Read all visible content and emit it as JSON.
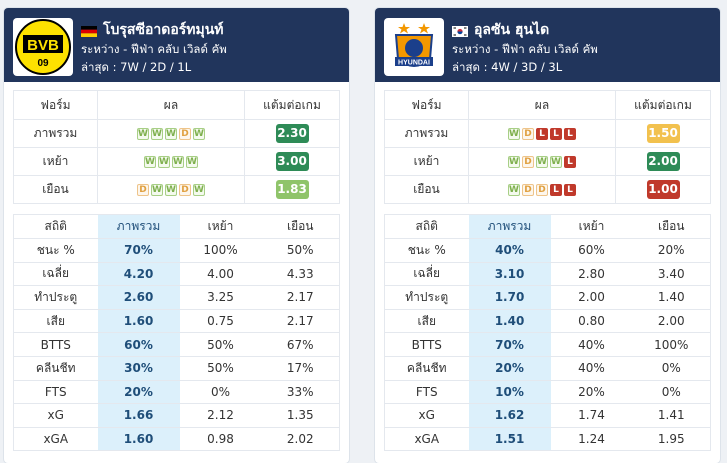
{
  "colors": {
    "header": "#21355c",
    "highlight": "#dcf0fb",
    "ppg_dark_green": "#2e8b57",
    "ppg_light_green": "#8fc46a",
    "ppg_amber": "#f2c14e",
    "ppg_red": "#c0392b"
  },
  "teams": [
    {
      "name": "โบรุสซีอาดอร์ทมุนท์",
      "flag": "germany-flag-icon",
      "logo_text": "BVB",
      "logo_sub": "09",
      "competition": "ระหว่าง - ฟีฟ่า คลับ เวิลด์ คัพ",
      "last": "ล่าสุด : 7W / 2D / 1L",
      "form_headers": {
        "form": "ฟอร์ม",
        "result": "ผล",
        "ppg": "แต้มต่อเกม"
      },
      "form_rows": [
        {
          "label": "ภาพรวม",
          "results": [
            "W",
            "W",
            "W",
            "D",
            "W"
          ],
          "ppg": "2.30",
          "ppg_color": "#2e8b57"
        },
        {
          "label": "เหย้า",
          "results": [
            "W",
            "W",
            "W",
            "W"
          ],
          "ppg": "3.00",
          "ppg_color": "#2e8b57"
        },
        {
          "label": "เยือน",
          "results": [
            "D",
            "W",
            "W",
            "D",
            "W"
          ],
          "ppg": "1.83",
          "ppg_color": "#8fc46a"
        }
      ],
      "stat_headers": {
        "stat": "สถิติ",
        "overall": "ภาพรวม",
        "home": "เหย้า",
        "away": "เยือน"
      },
      "stats": [
        {
          "label": "ชนะ %",
          "overall": "70%",
          "home": "100%",
          "away": "50%"
        },
        {
          "label": "เฉลี่ย",
          "overall": "4.20",
          "home": "4.00",
          "away": "4.33"
        },
        {
          "label": "ทำประตู",
          "overall": "2.60",
          "home": "3.25",
          "away": "2.17"
        },
        {
          "label": "เสีย",
          "overall": "1.60",
          "home": "0.75",
          "away": "2.17"
        },
        {
          "label": "BTTS",
          "overall": "60%",
          "home": "50%",
          "away": "67%"
        },
        {
          "label": "คลีนชีท",
          "overall": "30%",
          "home": "50%",
          "away": "17%"
        },
        {
          "label": "FTS",
          "overall": "20%",
          "home": "0%",
          "away": "33%"
        },
        {
          "label": "xG",
          "overall": "1.66",
          "home": "2.12",
          "away": "1.35"
        },
        {
          "label": "xGA",
          "overall": "1.60",
          "home": "0.98",
          "away": "2.02"
        }
      ]
    },
    {
      "name": "อุลซัน ฮุนได",
      "flag": "south-korea-flag-icon",
      "logo_text": "HYUNDAI",
      "logo_sub": "",
      "competition": "ระหว่าง - ฟีฟ่า คลับ เวิลด์ คัพ",
      "last": "ล่าสุด : 4W / 3D / 3L",
      "form_headers": {
        "form": "ฟอร์ม",
        "result": "ผล",
        "ppg": "แต้มต่อเกม"
      },
      "form_rows": [
        {
          "label": "ภาพรวม",
          "results": [
            "W",
            "D",
            "L",
            "L",
            "L"
          ],
          "ppg": "1.50",
          "ppg_color": "#f2c14e"
        },
        {
          "label": "เหย้า",
          "results": [
            "W",
            "D",
            "W",
            "W",
            "L"
          ],
          "ppg": "2.00",
          "ppg_color": "#2e8b57"
        },
        {
          "label": "เยือน",
          "results": [
            "W",
            "D",
            "D",
            "L",
            "L"
          ],
          "ppg": "1.00",
          "ppg_color": "#c0392b"
        }
      ],
      "stat_headers": {
        "stat": "สถิติ",
        "overall": "ภาพรวม",
        "home": "เหย้า",
        "away": "เยือน"
      },
      "stats": [
        {
          "label": "ชนะ %",
          "overall": "40%",
          "home": "60%",
          "away": "20%"
        },
        {
          "label": "เฉลี่ย",
          "overall": "3.10",
          "home": "2.80",
          "away": "3.40"
        },
        {
          "label": "ทำประตู",
          "overall": "1.70",
          "home": "2.00",
          "away": "1.40"
        },
        {
          "label": "เสีย",
          "overall": "1.40",
          "home": "0.80",
          "away": "2.00"
        },
        {
          "label": "BTTS",
          "overall": "70%",
          "home": "40%",
          "away": "100%"
        },
        {
          "label": "คลีนชีท",
          "overall": "20%",
          "home": "40%",
          "away": "0%"
        },
        {
          "label": "FTS",
          "overall": "10%",
          "home": "20%",
          "away": "0%"
        },
        {
          "label": "xG",
          "overall": "1.62",
          "home": "1.74",
          "away": "1.41"
        },
        {
          "label": "xGA",
          "overall": "1.51",
          "home": "1.24",
          "away": "1.95"
        }
      ]
    }
  ]
}
